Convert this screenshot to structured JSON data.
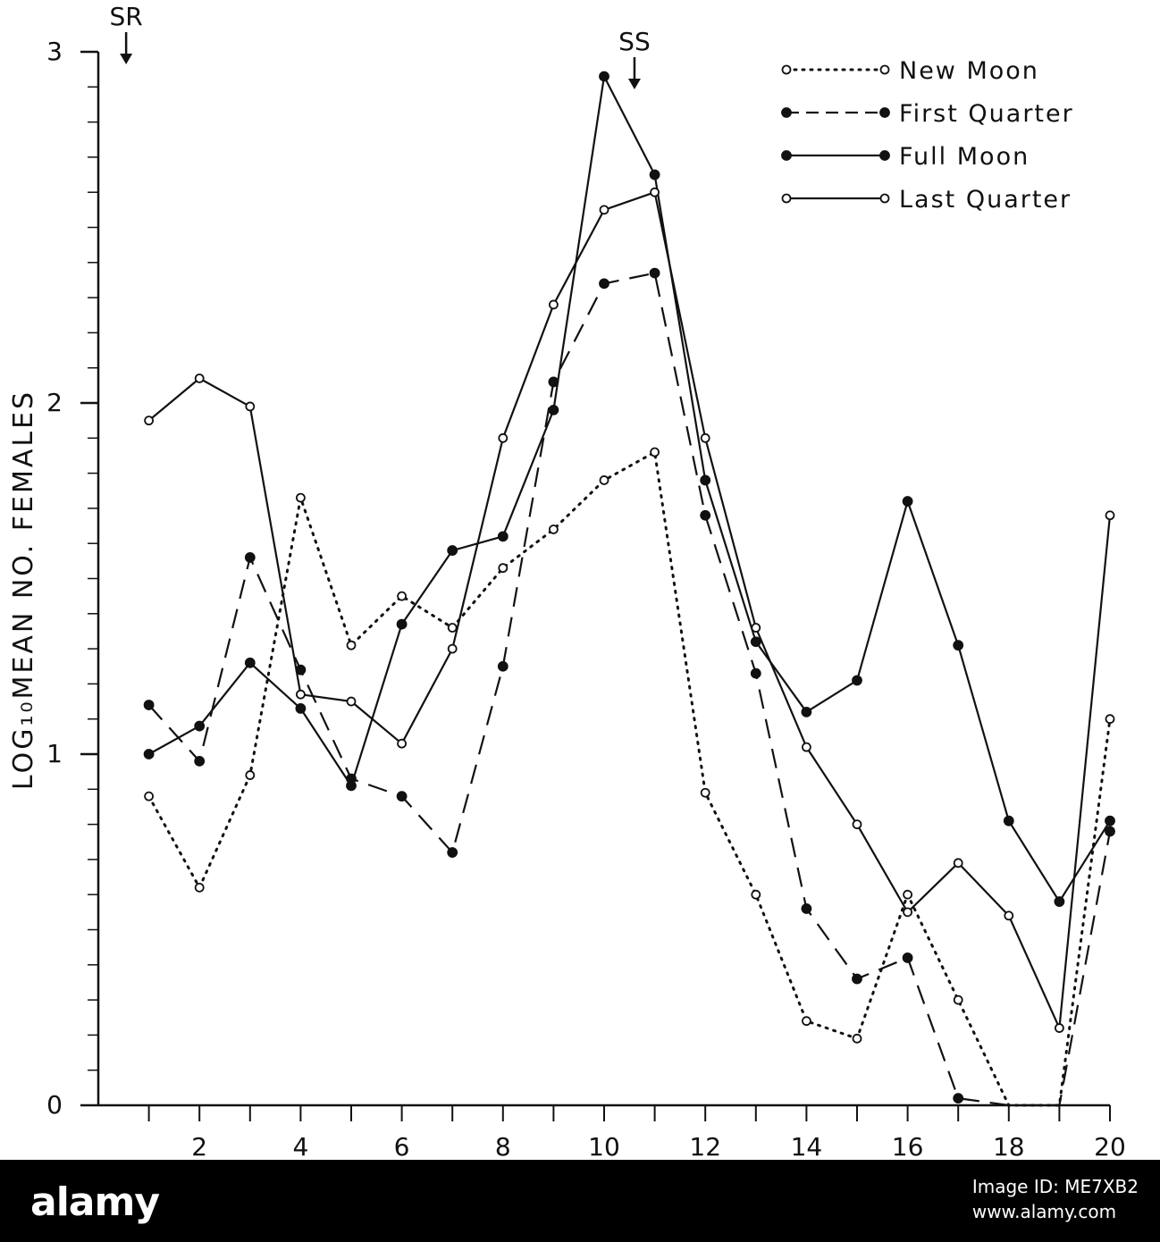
{
  "chart_data": {
    "type": "line",
    "title": "",
    "xlabel": "",
    "ylabel": "LOG₁₀MEAN NO. FEMALES",
    "xlim": [
      0,
      20
    ],
    "ylim": [
      0,
      3
    ],
    "x_ticks_labeled": [
      "2",
      "4",
      "6",
      "8",
      "10",
      "12",
      "14",
      "16",
      "18",
      "20"
    ],
    "y_ticks_labeled": [
      "0",
      "1",
      "2",
      "3"
    ],
    "annotations": [
      "SR",
      "SS"
    ],
    "grid": false,
    "legend_position": "top-right",
    "x": [
      1,
      2,
      3,
      4,
      5,
      6,
      7,
      8,
      9,
      10,
      11,
      12,
      13,
      14,
      15,
      16,
      17,
      18,
      19,
      20
    ],
    "series": [
      {
        "name": "New Moon",
        "line_style": "dotted",
        "marker": "open",
        "values": [
          0.88,
          0.62,
          0.94,
          1.73,
          1.31,
          1.45,
          1.36,
          1.53,
          1.64,
          1.78,
          1.86,
          0.89,
          0.6,
          0.24,
          0.19,
          0.6,
          0.3,
          null,
          null,
          1.1
        ]
      },
      {
        "name": "First Quarter",
        "line_style": "dashed",
        "marker": "filled",
        "values": [
          1.14,
          0.98,
          1.56,
          1.24,
          0.93,
          0.88,
          0.72,
          1.25,
          2.06,
          2.34,
          2.37,
          1.68,
          1.23,
          0.56,
          0.36,
          0.42,
          0.02,
          null,
          null,
          0.78
        ]
      },
      {
        "name": "Full Moon",
        "line_style": "solid",
        "marker": "filled",
        "values": [
          1.0,
          1.08,
          1.26,
          1.13,
          0.91,
          1.37,
          1.58,
          1.62,
          1.98,
          2.93,
          2.65,
          1.78,
          1.32,
          1.12,
          1.21,
          1.72,
          1.31,
          0.81,
          0.58,
          0.81
        ]
      },
      {
        "name": "Last Quarter",
        "line_style": "solid",
        "marker": "open",
        "values": [
          1.95,
          2.07,
          1.99,
          1.17,
          1.15,
          1.03,
          1.3,
          1.9,
          2.28,
          2.55,
          2.6,
          1.9,
          1.36,
          1.02,
          0.8,
          0.55,
          0.69,
          0.54,
          0.22,
          1.68
        ]
      }
    ]
  },
  "footer": {
    "logo_text": "alamy",
    "image_id": "Image ID: ME7XB2",
    "url": "www.alamy.com"
  }
}
